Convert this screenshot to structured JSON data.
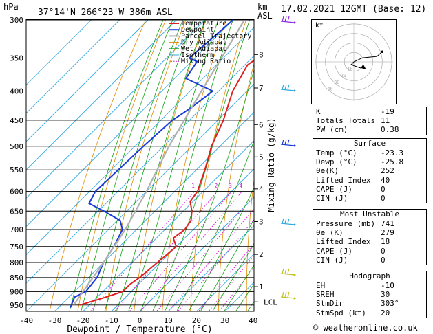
{
  "header": {
    "location": "37°14'N  266°23'W  386m  ASL",
    "date": "17.02.2021  12GMT  (Base: 12)",
    "hpa_unit": "hPa",
    "km_unit": "km",
    "asl_unit": "ASL"
  },
  "chart_data": {
    "type": "skew-t",
    "xlabel": "Dewpoint / Temperature (°C)",
    "ylabel": "Mixing Ratio (g/kg)",
    "x_ticks": [
      -40,
      -30,
      -20,
      -10,
      0,
      10,
      20,
      30,
      40
    ],
    "pressure_levels": [
      300,
      350,
      400,
      450,
      500,
      550,
      600,
      650,
      700,
      750,
      800,
      850,
      900,
      950
    ],
    "km_ticks": [
      {
        "p": 345,
        "km": "8"
      },
      {
        "p": 395,
        "km": "7"
      },
      {
        "p": 458,
        "km": "6"
      },
      {
        "p": 522,
        "km": "5"
      },
      {
        "p": 594,
        "km": "4"
      },
      {
        "p": 678,
        "km": "3"
      },
      {
        "p": 774,
        "km": "2"
      },
      {
        "p": 882,
        "km": "1"
      },
      {
        "p": 938,
        "km": "LCL"
      }
    ],
    "mixing_ratio_labels": [
      "1",
      "2",
      "3",
      "4",
      "6",
      "8",
      "10",
      "16",
      "20",
      "25"
    ],
    "legend": [
      "Temperature",
      "Dewpoint",
      "Parcel Trajectory",
      "Dry Adiabat",
      "Wet Adiabat",
      "Isotherm",
      "Mixing Ratio"
    ],
    "series": [
      {
        "name": "Temperature",
        "points": [
          [
            300,
            -51
          ],
          [
            340,
            -47
          ],
          [
            360,
            -49
          ],
          [
            400,
            -45
          ],
          [
            450,
            -38
          ],
          [
            500,
            -33
          ],
          [
            550,
            -27
          ],
          [
            600,
            -22
          ],
          [
            625,
            -21
          ],
          [
            650,
            -17
          ],
          [
            675,
            -14
          ],
          [
            700,
            -13
          ],
          [
            725,
            -14
          ],
          [
            750,
            -10
          ],
          [
            800,
            -11
          ],
          [
            850,
            -12
          ],
          [
            875,
            -13
          ],
          [
            900,
            -13
          ],
          [
            920,
            -17
          ],
          [
            950,
            -23.3
          ]
        ]
      },
      {
        "name": "Dewpoint",
        "points": [
          [
            300,
            -70
          ],
          [
            350,
            -72
          ],
          [
            355,
            -68
          ],
          [
            380,
            -66
          ],
          [
            400,
            -52
          ],
          [
            430,
            -54
          ],
          [
            450,
            -56
          ],
          [
            500,
            -57
          ],
          [
            600,
            -58
          ],
          [
            630,
            -56
          ],
          [
            650,
            -48
          ],
          [
            675,
            -39
          ],
          [
            700,
            -35
          ],
          [
            750,
            -32
          ],
          [
            800,
            -30
          ],
          [
            850,
            -27
          ],
          [
            900,
            -26
          ],
          [
            920,
            -28
          ],
          [
            960,
            -25.8
          ]
        ]
      },
      {
        "name": "Parcel Trajectory",
        "points": [
          [
            300,
            -66
          ],
          [
            400,
            -56
          ],
          [
            500,
            -48
          ],
          [
            600,
            -40
          ],
          [
            700,
            -34
          ],
          [
            800,
            -30
          ],
          [
            900,
            -27
          ],
          [
            950,
            -25.5
          ]
        ]
      }
    ],
    "colors": {
      "temperature": "#e02020",
      "dewpoint": "#1a3ad8",
      "parcel": "#b0b0b0",
      "dry_adiabat": "#e08a00",
      "wet_adiabat": "#10a010",
      "isotherm": "#30a8e0",
      "mixing_ratio": "#d010d0"
    }
  },
  "hodograph": {
    "label": "kt",
    "rings": [
      "10",
      "20",
      "30",
      "40"
    ]
  },
  "indices": [
    {
      "label": "K",
      "value": "-19"
    },
    {
      "label": "Totals Totals",
      "value": "11"
    },
    {
      "label": "PW (cm)",
      "value": "0.38"
    }
  ],
  "surface": {
    "title": "Surface",
    "rows": [
      {
        "label": "Temp (°C)",
        "value": "-23.3"
      },
      {
        "label": "Dewp (°C)",
        "value": "-25.8"
      },
      {
        "label": "θe(K)",
        "value": "252"
      },
      {
        "label": "Lifted Index",
        "value": "40"
      },
      {
        "label": "CAPE (J)",
        "value": "0"
      },
      {
        "label": "CIN (J)",
        "value": "0"
      }
    ]
  },
  "most_unstable": {
    "title": "Most Unstable",
    "rows": [
      {
        "label": "Pressure (mb)",
        "value": "741"
      },
      {
        "label": "θe (K)",
        "value": "279"
      },
      {
        "label": "Lifted Index",
        "value": "18"
      },
      {
        "label": "CAPE (J)",
        "value": "0"
      },
      {
        "label": "CIN (J)",
        "value": "0"
      }
    ]
  },
  "hodograph_table": {
    "title": "Hodograph",
    "rows": [
      {
        "label": "EH",
        "value": "-10"
      },
      {
        "label": "SREH",
        "value": "30"
      },
      {
        "label": "StmDir",
        "value": "303°"
      },
      {
        "label": "StmSpd (kt)",
        "value": "20"
      }
    ]
  },
  "footer": "© weatheronline.co.uk"
}
